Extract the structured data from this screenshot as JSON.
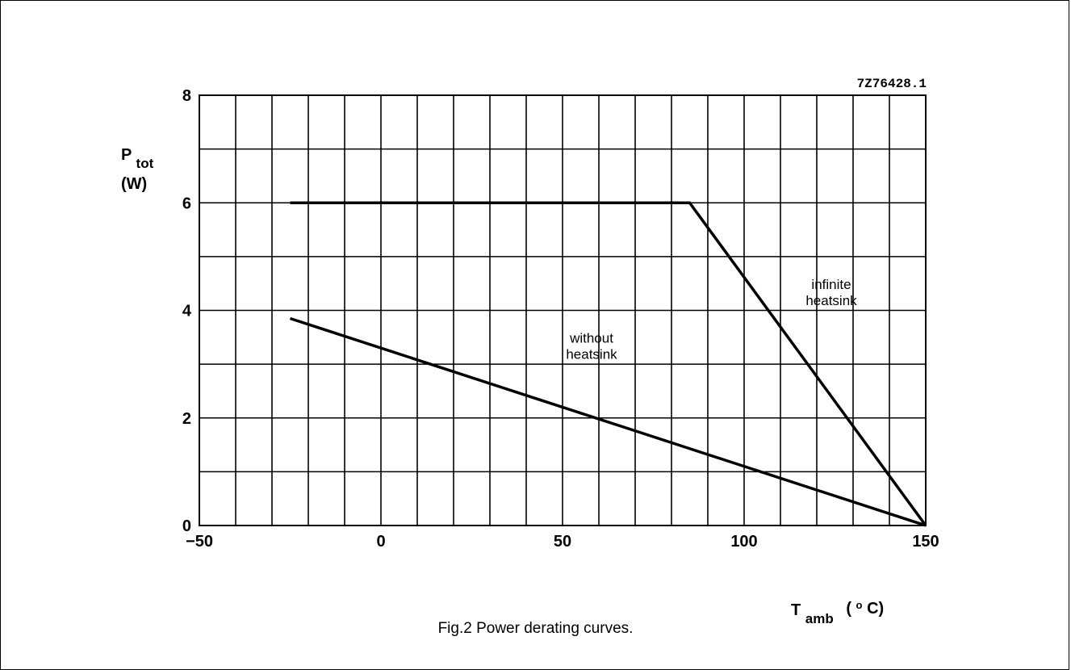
{
  "chart_data": {
    "type": "line",
    "figure_code": "7Z76428.1",
    "ylabel_main": "P",
    "ylabel_sub": "tot",
    "ylabel_unit": "(W)",
    "xlabel_main": "T",
    "xlabel_sub": "amb",
    "xlabel_unit_open": "(",
    "xlabel_unit_sup": "o",
    "xlabel_unit_rest": "C)",
    "xlim": [
      -50,
      150
    ],
    "ylim": [
      0,
      8
    ],
    "x_ticks": [
      -50,
      0,
      50,
      100,
      150
    ],
    "x_tick_labels": [
      "−50",
      "0",
      "50",
      "100",
      "150"
    ],
    "y_ticks": [
      0,
      2,
      4,
      6,
      8
    ],
    "y_tick_labels": [
      "0",
      "2",
      "4",
      "6",
      "8"
    ],
    "grid": true,
    "x_grid_step": 10,
    "y_grid_step": 1,
    "series": [
      {
        "name": "infinite heatsink",
        "label_lines": [
          "infinite",
          "heatsink"
        ],
        "label_at": [
          124,
          4.4
        ],
        "x": [
          -25,
          85,
          150
        ],
        "y": [
          6,
          6,
          0
        ]
      },
      {
        "name": "without heatsink",
        "label_lines": [
          "without",
          "heatsink"
        ],
        "label_at": [
          58,
          3.4
        ],
        "x": [
          -25,
          150
        ],
        "y": [
          3.85,
          0
        ]
      }
    ]
  },
  "caption": "Fig.2  Power derating curves."
}
